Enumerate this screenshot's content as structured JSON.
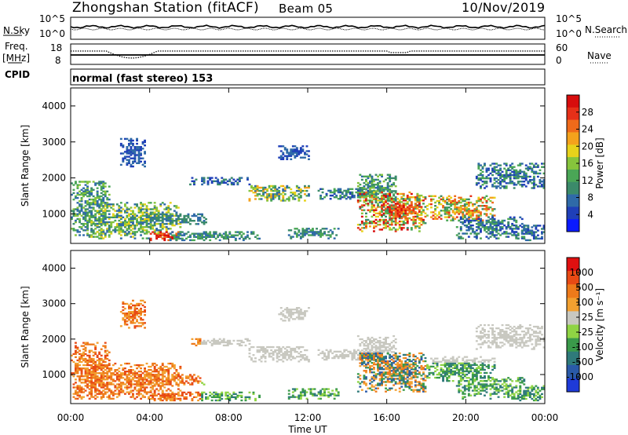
{
  "header": {
    "station": "Zhongshan Station (fitACF)",
    "beam": "Beam 05",
    "date": "10/Nov/2019"
  },
  "status_panels": {
    "nsky_label": "N.Sky",
    "freq_label": "Freq.",
    "freq_unit": "[MHz]",
    "cpid_label": "CPID",
    "nsearch_label": "N.Search",
    "nave_label": "Nave",
    "noise_ticks_left": [
      "10^5",
      "10^0"
    ],
    "noise_ticks_right": [
      "10^5",
      "10^0"
    ],
    "freq_ticks": [
      "18",
      "8"
    ],
    "nave_ticks": [
      "60",
      "0"
    ],
    "cpid_text": "normal (fast stereo) 153"
  },
  "chart_data": [
    {
      "type": "heatmap",
      "name": "power-panel",
      "ylabel": "Slant Range [km]",
      "yticks": [
        "4000",
        "3000",
        "2000",
        "1000"
      ],
      "ylim": [
        180,
        4500
      ],
      "xlim": [
        0,
        24
      ],
      "colorbar": {
        "label": "Power [dB]",
        "ticks": [
          "28",
          "24",
          "20",
          "16",
          "12",
          "8",
          "4"
        ],
        "colors": [
          "#0a1aff",
          "#1f3fb8",
          "#2f6aa8",
          "#3b8a6a",
          "#4aa656",
          "#86c43c",
          "#e7d21b",
          "#f4a21c",
          "#ef6a1a",
          "#e63018",
          "#d80d0d"
        ]
      }
    },
    {
      "type": "heatmap",
      "name": "velocity-panel",
      "ylabel": "Slant Range [km]",
      "yticks": [
        "4000",
        "3000",
        "2000",
        "1000"
      ],
      "ylim": [
        180,
        4500
      ],
      "xlim": [
        0,
        24
      ],
      "colorbar": {
        "label": "Velocity [m s⁻¹]",
        "ticks": [
          "1000",
          "500",
          "100",
          "25",
          "-25",
          "-100",
          "-500",
          "-1000"
        ],
        "colors": [
          "#1e3ad8",
          "#2a5aa8",
          "#2f7a7a",
          "#3a9a4a",
          "#8fd444",
          "#c8c8c0",
          "#f2a030",
          "#ee7a1a",
          "#e84a14",
          "#e01010"
        ]
      }
    }
  ],
  "xaxis": {
    "label": "Time UT",
    "ticks": [
      "00:00",
      "04:00",
      "08:00",
      "12:00",
      "16:00",
      "20:00",
      "00:00"
    ]
  }
}
